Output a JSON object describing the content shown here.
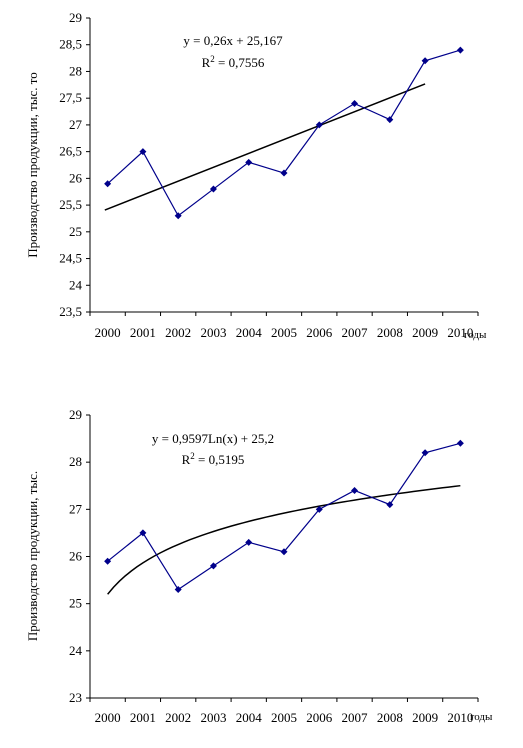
{
  "chart_data": [
    {
      "type": "line",
      "x": [
        "2000",
        "2001",
        "2002",
        "2003",
        "2004",
        "2005",
        "2006",
        "2007",
        "2008",
        "2009",
        "2010"
      ],
      "series": [
        {
          "values": [
            25.9,
            26.5,
            25.3,
            25.8,
            26.3,
            26.1,
            27.0,
            27.4,
            27.1,
            28.2,
            28.4
          ]
        }
      ],
      "trendline": {
        "type": "linear",
        "slope": 0.26,
        "intercept": 25.167
      },
      "equation": "y = 0,26x + 25,167",
      "r2_label": "R",
      "r2_sup": "2",
      "r2_value": " = 0,7556",
      "ylabel": "Производство продукции, тыс. то",
      "xlabel": "годы",
      "ylim": [
        23.5,
        29
      ],
      "yticks": [
        23.5,
        24,
        24.5,
        25,
        25.5,
        26,
        26.5,
        27,
        27.5,
        28,
        28.5,
        29
      ],
      "yticklabels": [
        "23,5",
        "24",
        "24,5",
        "25",
        "25,5",
        "26",
        "26,5",
        "27",
        "27,5",
        "28",
        "28,5",
        "29"
      ],
      "colors": {
        "series": "#00008B",
        "trend": "#000000"
      }
    },
    {
      "type": "line",
      "x": [
        "2000",
        "2001",
        "2002",
        "2003",
        "2004",
        "2005",
        "2006",
        "2007",
        "2008",
        "2009",
        "2010"
      ],
      "series": [
        {
          "values": [
            25.9,
            26.5,
            25.3,
            25.8,
            26.3,
            26.1,
            27.0,
            27.4,
            27.1,
            28.2,
            28.4
          ]
        }
      ],
      "trendline": {
        "type": "logarithmic",
        "a": 0.9597,
        "b": 25.2
      },
      "equation": "y = 0,9597Ln(x) + 25,2",
      "r2_label": "R",
      "r2_sup": "2",
      "r2_value": " = 0,5195",
      "ylabel": "Производство продукции, тыс.",
      "xlabel": "годы",
      "ylim": [
        23,
        29
      ],
      "yticks": [
        23,
        24,
        25,
        26,
        27,
        28,
        29
      ],
      "yticklabels": [
        "23",
        "24",
        "25",
        "26",
        "27",
        "28",
        "29"
      ],
      "colors": {
        "series": "#00008B",
        "trend": "#000000"
      }
    }
  ]
}
